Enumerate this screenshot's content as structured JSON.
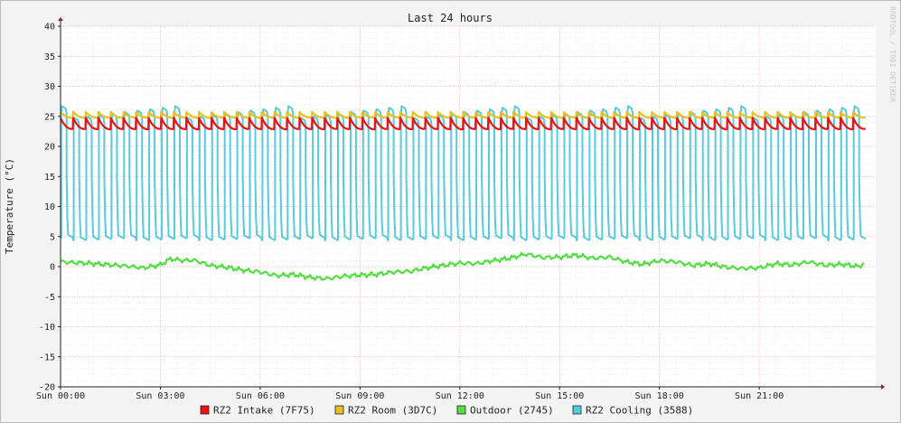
{
  "chart_data": {
    "type": "line",
    "title": "Last 24 hours",
    "ylabel": "Temperature (°C)",
    "watermark": "RRDTOOL / TOBI OETIKER",
    "ylim": [
      -20,
      40
    ],
    "yticks": [
      40,
      35,
      30,
      25,
      20,
      15,
      10,
      5,
      0,
      -5,
      -10,
      -15,
      -20
    ],
    "xlim_hours": [
      0,
      24.5
    ],
    "x_tick_labels": [
      "Sun 00:00",
      "Sun 03:00",
      "Sun 06:00",
      "Sun 09:00",
      "Sun 12:00",
      "Sun 15:00",
      "Sun 18:00",
      "Sun 21:00"
    ],
    "x_tick_hours": [
      0,
      3,
      6,
      9,
      12,
      15,
      18,
      21
    ],
    "grid": true,
    "legend_position": "bottom",
    "cycle_count": 64,
    "series": [
      {
        "name": "RZ2 Intake (7F75)",
        "color": "#ee1111",
        "pattern": "sawtooth",
        "high": 24.7,
        "low": 22.9
      },
      {
        "name": "RZ2 Room (3D7C)",
        "color": "#e8c020",
        "pattern": "sawtooth",
        "high": 25.7,
        "low": 24.8
      },
      {
        "name": "Outdoor (2745)",
        "color": "#55dd44",
        "pattern": "line",
        "points": [
          [
            0,
            0.8
          ],
          [
            1,
            0.5
          ],
          [
            2,
            0.1
          ],
          [
            2.5,
            -0.2
          ],
          [
            3,
            0.3
          ],
          [
            3.3,
            1.3
          ],
          [
            3.7,
            1.0
          ],
          [
            4,
            1.1
          ],
          [
            4.5,
            0.2
          ],
          [
            5,
            -0.1
          ],
          [
            5.5,
            -0.6
          ],
          [
            6,
            -0.9
          ],
          [
            6.5,
            -1.5
          ],
          [
            7,
            -1.3
          ],
          [
            7.5,
            -1.8
          ],
          [
            8,
            -2.0
          ],
          [
            8.5,
            -1.6
          ],
          [
            9,
            -1.4
          ],
          [
            9.5,
            -1.3
          ],
          [
            10,
            -0.9
          ],
          [
            10.5,
            -0.8
          ],
          [
            11,
            -0.2
          ],
          [
            11.5,
            0.2
          ],
          [
            12,
            0.6
          ],
          [
            12.5,
            0.5
          ],
          [
            13,
            1.0
          ],
          [
            13.5,
            1.4
          ],
          [
            14,
            2.1
          ],
          [
            14.5,
            1.5
          ],
          [
            15,
            1.6
          ],
          [
            15.5,
            1.9
          ],
          [
            16,
            1.4
          ],
          [
            16.5,
            1.6
          ],
          [
            17,
            0.8
          ],
          [
            17.5,
            0.4
          ],
          [
            18,
            1.0
          ],
          [
            18.5,
            0.8
          ],
          [
            19,
            0.2
          ],
          [
            19.5,
            0.5
          ],
          [
            20,
            -0.1
          ],
          [
            20.5,
            -0.3
          ],
          [
            21,
            -0.2
          ],
          [
            21.5,
            0.5
          ],
          [
            22,
            0.3
          ],
          [
            22.5,
            0.8
          ],
          [
            23,
            0.2
          ],
          [
            23.5,
            0.4
          ],
          [
            24,
            0.0
          ],
          [
            24.2,
            0.8
          ]
        ]
      },
      {
        "name": "RZ2 Cooling (3588)",
        "color": "#55ccdd",
        "pattern": "square",
        "high": 26.7,
        "low": 4.8
      }
    ]
  }
}
